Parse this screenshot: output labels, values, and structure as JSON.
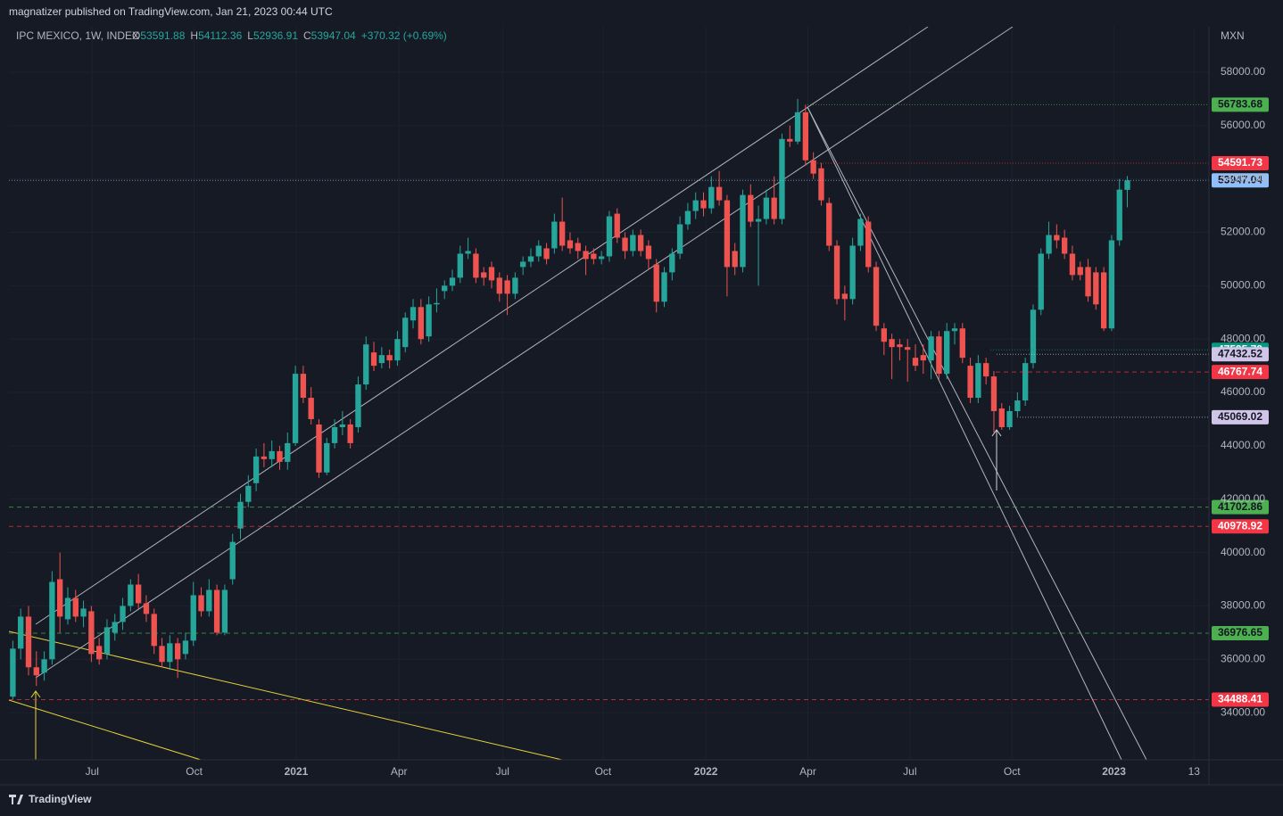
{
  "header": {
    "publisher": "magnatizer published on TradingView.com, Jan 21, 2023 00:44 UTC",
    "symbol": "IPC MEXICO, 1W, INDEX",
    "ohlc_prefixes": [
      "O",
      "H",
      "L",
      "C"
    ],
    "change": "+370.32 (+0.69%)",
    "footer": "TradingView"
  },
  "chart_data": {
    "type": "candlestick",
    "currency": "MXN",
    "up_color": "#26a69a",
    "down_color": "#ef5350",
    "xlim": [
      -0.5,
      152.4
    ],
    "xticks": [
      {
        "value": 10.1,
        "label": "Jul"
      },
      {
        "value": 23.1,
        "label": "Oct"
      },
      {
        "value": 36.1,
        "label": "2021"
      },
      {
        "value": 49.2,
        "label": "Apr"
      },
      {
        "value": 62.4,
        "label": "Jul"
      },
      {
        "value": 75.2,
        "label": "Oct"
      },
      {
        "value": 88.3,
        "label": "2022"
      },
      {
        "value": 101.3,
        "label": "Apr"
      },
      {
        "value": 114.3,
        "label": "Jul"
      },
      {
        "value": 127.3,
        "label": "Oct"
      },
      {
        "value": 140.3,
        "label": "2023"
      },
      {
        "value": 150.5,
        "label": "13"
      }
    ],
    "ylim": [
      32233,
      59704
    ],
    "yticks": [
      {
        "value": 34000,
        "label": "34000.00"
      },
      {
        "value": 36000,
        "label": "36000.00"
      },
      {
        "value": 38000,
        "label": "38000.00"
      },
      {
        "value": 40000,
        "label": "40000.00"
      },
      {
        "value": 42000,
        "label": "42000.00"
      },
      {
        "value": 44000,
        "label": "44000.00"
      },
      {
        "value": 46000,
        "label": "46000.00"
      },
      {
        "value": 48000,
        "label": "48000.00"
      },
      {
        "value": 50000,
        "label": "50000.00"
      },
      {
        "value": 52000,
        "label": "52000.00"
      },
      {
        "value": 54000,
        "label": "54000.00"
      },
      {
        "value": 56000,
        "label": "56000.00"
      },
      {
        "value": 58000,
        "label": "58000.00"
      }
    ],
    "levels": [
      {
        "value": 56783.68,
        "color": "#4caf50",
        "text_color": "#131722",
        "style": "dotted"
      },
      {
        "value": 54591.73,
        "color": "#f23645",
        "text_color": "#ffffff",
        "style": "dotted"
      },
      {
        "value": 53947.04,
        "color": "#90bff9",
        "text_color": "#131722",
        "style": "dotted"
      },
      {
        "value": 47595.79,
        "color": "#089981",
        "text_color": "#ffffff",
        "style": "dotted"
      },
      {
        "value": 47432.52,
        "color": "#d1c4e9",
        "text_color": "#131722",
        "style": "dotted"
      },
      {
        "value": 46767.74,
        "color": "#f23645",
        "text_color": "#ffffff",
        "style": "dashed"
      },
      {
        "value": 45069.02,
        "color": "#d1c4e9",
        "text_color": "#131722",
        "style": "dotted"
      },
      {
        "value": 41702.86,
        "color": "#4caf50",
        "text_color": "#131722",
        "style": "dashed"
      },
      {
        "value": 40978.92,
        "color": "#f23645",
        "text_color": "#ffffff",
        "style": "dashed"
      },
      {
        "value": 36976.65,
        "color": "#4caf50",
        "text_color": "#131722",
        "style": "dashed"
      },
      {
        "value": 34488.41,
        "color": "#f23645",
        "text_color": "#ffffff",
        "style": "dashed"
      }
    ],
    "candles": [
      [
        34600,
        36700,
        34500,
        36400
      ],
      [
        36400,
        37900,
        36000,
        37600
      ],
      [
        37600,
        38000,
        35400,
        35700
      ],
      [
        35700,
        36300,
        35000,
        35400
      ],
      [
        35500,
        36300,
        35200,
        36000
      ],
      [
        36000,
        39300,
        35800,
        38900
      ],
      [
        39000,
        40000,
        37000,
        37600
      ],
      [
        37500,
        38700,
        37300,
        38300
      ],
      [
        38300,
        38600,
        37400,
        37600
      ],
      [
        37600,
        38200,
        37200,
        37900
      ],
      [
        37800,
        38000,
        35900,
        36200
      ],
      [
        36500,
        36800,
        35800,
        36000
      ],
      [
        36200,
        37500,
        36000,
        37200
      ],
      [
        37000,
        37700,
        36700,
        37400
      ],
      [
        37400,
        38300,
        37100,
        38000
      ],
      [
        38000,
        39000,
        37800,
        38800
      ],
      [
        38800,
        39200,
        37900,
        38100
      ],
      [
        38100,
        38400,
        37400,
        37700
      ],
      [
        37700,
        37900,
        36200,
        36500
      ],
      [
        36500,
        36800,
        35700,
        35900
      ],
      [
        35900,
        36900,
        35600,
        36600
      ],
      [
        36600,
        36800,
        35300,
        36000
      ],
      [
        36200,
        37000,
        36000,
        36700
      ],
      [
        36700,
        38900,
        36500,
        38400
      ],
      [
        38400,
        38700,
        37600,
        37800
      ],
      [
        37800,
        39000,
        37600,
        38600
      ],
      [
        38600,
        38800,
        36900,
        37000
      ],
      [
        37000,
        38800,
        36900,
        38600
      ],
      [
        39000,
        40700,
        38800,
        40400
      ],
      [
        40900,
        42200,
        40500,
        41900
      ],
      [
        41900,
        42900,
        41700,
        42500
      ],
      [
        42600,
        43900,
        42300,
        43600
      ],
      [
        43600,
        44100,
        43200,
        43500
      ],
      [
        43500,
        44200,
        43200,
        43800
      ],
      [
        43800,
        44000,
        43100,
        43400
      ],
      [
        43400,
        44500,
        43100,
        44100
      ],
      [
        44100,
        47000,
        44000,
        46700
      ],
      [
        46700,
        47000,
        45600,
        45800
      ],
      [
        45800,
        46200,
        44800,
        45000
      ],
      [
        44800,
        45000,
        42800,
        43000
      ],
      [
        43000,
        44300,
        42900,
        44100
      ],
      [
        44100,
        45000,
        43900,
        44700
      ],
      [
        44700,
        45300,
        44400,
        44800
      ],
      [
        44800,
        45000,
        43900,
        44100
      ],
      [
        44700,
        46600,
        44500,
        46300
      ],
      [
        46300,
        48100,
        46100,
        47800
      ],
      [
        47500,
        47900,
        46800,
        47000
      ],
      [
        47100,
        47700,
        46900,
        47400
      ],
      [
        47400,
        47600,
        46900,
        47200
      ],
      [
        47200,
        48300,
        47000,
        48000
      ],
      [
        47700,
        49000,
        47500,
        48800
      ],
      [
        48700,
        49500,
        48400,
        49200
      ],
      [
        49200,
        49500,
        47800,
        48000
      ],
      [
        48100,
        49600,
        47900,
        49300
      ],
      [
        49300,
        49900,
        49000,
        49350
      ],
      [
        49800,
        50200,
        49500,
        50000
      ],
      [
        50000,
        50600,
        49800,
        50300
      ],
      [
        50300,
        51500,
        50100,
        51200
      ],
      [
        51200,
        51800,
        51000,
        51300
      ],
      [
        51200,
        51400,
        50100,
        50300
      ],
      [
        50500,
        50700,
        50000,
        50300
      ],
      [
        50700,
        50900,
        49900,
        50200
      ],
      [
        50300,
        50500,
        49400,
        49700
      ],
      [
        50200,
        50400,
        48900,
        49700
      ],
      [
        49700,
        50500,
        49500,
        50300
      ],
      [
        50700,
        51100,
        50400,
        50900
      ],
      [
        50900,
        51400,
        50700,
        51100
      ],
      [
        51100,
        51700,
        50900,
        51500
      ],
      [
        51400,
        51600,
        50800,
        51000
      ],
      [
        51400,
        52700,
        51200,
        52400
      ],
      [
        52400,
        53300,
        51300,
        51500
      ],
      [
        51700,
        52000,
        51200,
        51400
      ],
      [
        51600,
        51800,
        51000,
        51300
      ],
      [
        51300,
        51500,
        50400,
        51000
      ],
      [
        51200,
        51400,
        50800,
        51000
      ],
      [
        51000,
        51300,
        50800,
        51100
      ],
      [
        51100,
        52800,
        50900,
        52600
      ],
      [
        52700,
        52900,
        51600,
        51800
      ],
      [
        51800,
        52000,
        51000,
        51300
      ],
      [
        51300,
        52100,
        51100,
        51900
      ],
      [
        51900,
        52100,
        51100,
        51300
      ],
      [
        51500,
        51700,
        50600,
        51000
      ],
      [
        50800,
        51000,
        49000,
        49400
      ],
      [
        49400,
        50700,
        49200,
        50500
      ],
      [
        50500,
        51400,
        50200,
        51200
      ],
      [
        51200,
        52600,
        51000,
        52300
      ],
      [
        52300,
        53100,
        52100,
        52800
      ],
      [
        52800,
        53500,
        52500,
        53200
      ],
      [
        53200,
        53500,
        52600,
        52900
      ],
      [
        52900,
        54100,
        52700,
        53700
      ],
      [
        53700,
        54300,
        53000,
        53200
      ],
      [
        53200,
        53400,
        49600,
        50700
      ],
      [
        51300,
        51600,
        50400,
        50700
      ],
      [
        50700,
        53600,
        50500,
        53400
      ],
      [
        53400,
        53800,
        52200,
        52400
      ],
      [
        52400,
        53000,
        50000,
        52500
      ],
      [
        52500,
        53600,
        52300,
        53300
      ],
      [
        53300,
        54100,
        52300,
        52500
      ],
      [
        52500,
        55700,
        52300,
        55500
      ],
      [
        55500,
        56000,
        55200,
        55400
      ],
      [
        55400,
        57000,
        55300,
        56500
      ],
      [
        56500,
        56783.68,
        54500,
        54700
      ],
      [
        54700,
        55000,
        54000,
        54200
      ],
      [
        54400,
        54600,
        53000,
        53200
      ],
      [
        53100,
        53300,
        51300,
        51500
      ],
      [
        51500,
        51700,
        49300,
        49500
      ],
      [
        49700,
        50000,
        48700,
        49500
      ],
      [
        49500,
        51800,
        49300,
        51500
      ],
      [
        51500,
        52700,
        51300,
        52500
      ],
      [
        52400,
        52600,
        50500,
        50700
      ],
      [
        50700,
        50900,
        48300,
        48500
      ],
      [
        48400,
        48600,
        47400,
        47900
      ],
      [
        48000,
        48200,
        46500,
        47700
      ],
      [
        47800,
        48000,
        47200,
        47700
      ],
      [
        47700,
        48000,
        46400,
        47600
      ],
      [
        47300,
        47800,
        46800,
        47000
      ],
      [
        47400,
        47800,
        46700,
        47200
      ],
      [
        47200,
        48300,
        46500,
        48100
      ],
      [
        48100,
        48300,
        46500,
        46700
      ],
      [
        46700,
        48600,
        46500,
        48300
      ],
      [
        48300,
        48600,
        47800,
        48400
      ],
      [
        48400,
        48600,
        47100,
        47300
      ],
      [
        47000,
        47300,
        45600,
        45800
      ],
      [
        45800,
        47400,
        45600,
        47100
      ],
      [
        47100,
        47300,
        46300,
        46600
      ],
      [
        46600,
        46800,
        44500,
        45300
      ],
      [
        45400,
        45600,
        44600,
        44700
      ],
      [
        44700,
        45500,
        44600,
        45300
      ],
      [
        45300,
        46000,
        45100,
        45700
      ],
      [
        45700,
        47300,
        45500,
        47100
      ],
      [
        47100,
        49300,
        46900,
        49100
      ],
      [
        49100,
        51400,
        48900,
        51200
      ],
      [
        51200,
        52400,
        51000,
        51900
      ],
      [
        51900,
        52300,
        51400,
        51700
      ],
      [
        51800,
        52100,
        51000,
        51200
      ],
      [
        51200,
        51500,
        50200,
        50400
      ],
      [
        50700,
        50900,
        50200,
        50400
      ],
      [
        50700,
        51000,
        49400,
        49600
      ],
      [
        50500,
        50700,
        49100,
        49300
      ],
      [
        50500,
        50700,
        48300,
        48400
      ],
      [
        48400,
        51900,
        48300,
        51700
      ],
      [
        51700,
        54000,
        51500,
        53600
      ],
      [
        53591.88,
        54112.36,
        52936.91,
        53947.04
      ]
    ]
  }
}
